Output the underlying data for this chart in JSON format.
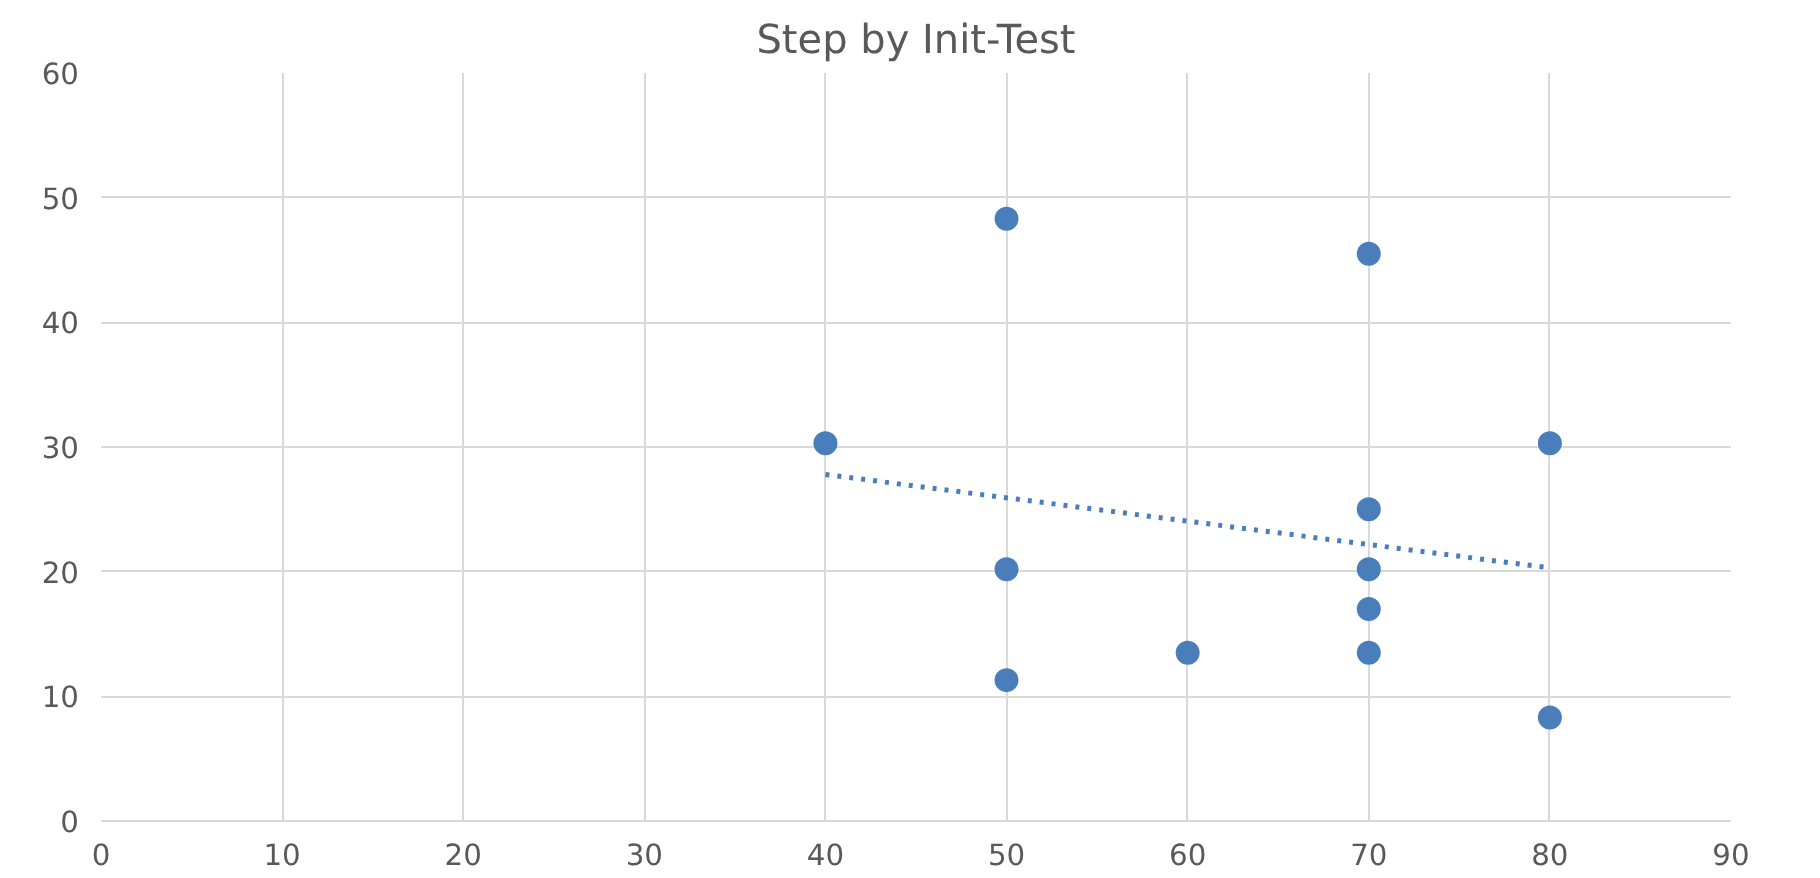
{
  "chart_data": {
    "type": "scatter",
    "title": "Step by Init-Test",
    "series": [
      {
        "color": "#4a7ebb",
        "marker": "circle",
        "x": [
          40,
          50,
          50,
          50,
          60,
          70,
          70,
          70,
          70,
          70,
          80,
          80
        ],
        "values": [
          30.3,
          48.3,
          20.2,
          11.3,
          13.5,
          45.5,
          25,
          20.2,
          17,
          13.5,
          30.3,
          8.3
        ]
      },
      {
        "type": "line",
        "color": "#4a7ebb",
        "line_style": "dotted",
        "marker": "none",
        "x": [
          40,
          80
        ],
        "values": [
          27.8,
          20.3
        ]
      }
    ],
    "xlim": [
      0,
      90
    ],
    "xticks": [
      0,
      10,
      20,
      30,
      40,
      50,
      60,
      70,
      80,
      90
    ],
    "ylim": [
      0,
      60
    ],
    "yticks": [
      0,
      10,
      20,
      30,
      40,
      50,
      60
    ],
    "grid": true
  }
}
